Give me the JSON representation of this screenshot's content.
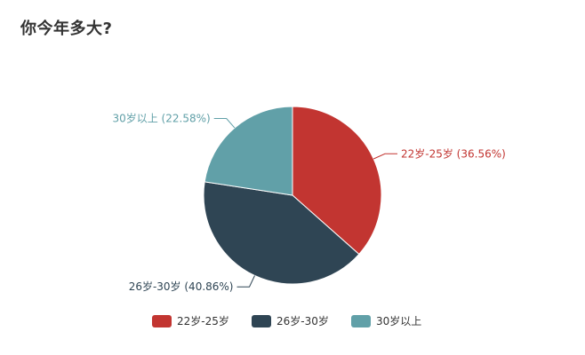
{
  "chart_data": {
    "type": "pie",
    "title": "你今年多大?",
    "slices": [
      {
        "name": "22岁-25岁",
        "value": 36.56,
        "label": "22岁-25岁 (36.56%)",
        "color": "#c23531"
      },
      {
        "name": "26岁-30岁",
        "value": 40.86,
        "label": "26岁-30岁 (40.86%)",
        "color": "#2f4554"
      },
      {
        "name": "30岁以上",
        "value": 22.58,
        "label": "30岁以上 (22.58%)",
        "color": "#61a0a8"
      }
    ],
    "legend": {
      "position": "bottom-center",
      "items": [
        "22岁-25岁",
        "26岁-30岁",
        "30岁以上"
      ]
    },
    "start_angle_deg": 90,
    "direction": "clockwise"
  }
}
